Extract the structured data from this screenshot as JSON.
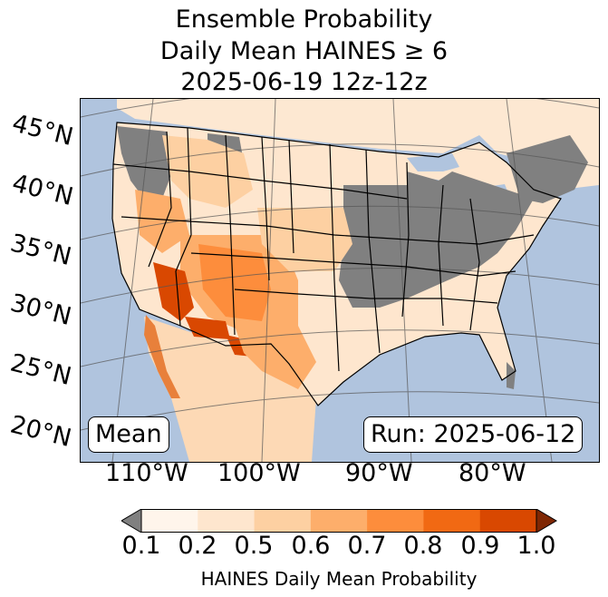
{
  "title": {
    "line1": "Ensemble Probability",
    "line2": "Daily Mean HAINES ≥ 6",
    "line3": "2025-06-19 12z-12z"
  },
  "map": {
    "lat_labels": [
      "45°N",
      "40°N",
      "35°N",
      "30°N",
      "25°N",
      "20°N"
    ],
    "lon_labels": [
      "110°W",
      "100°W",
      "90°W",
      "80°W"
    ],
    "mean_label": "Mean",
    "run_label": "Run: 2025-06-12",
    "ocean_color": "#b0c4de",
    "no_data_color": "#808080"
  },
  "colorbar": {
    "ticks": [
      "0.1",
      "0.2",
      "0.5",
      "0.6",
      "0.7",
      "0.8",
      "0.9",
      "1.0"
    ],
    "colors": [
      "#fff5eb",
      "#fee6ce",
      "#fdd0a2",
      "#fdae6b",
      "#fd8d3c",
      "#f16913",
      "#d94801",
      "#a63603"
    ],
    "under_color": "#808080",
    "label": "HAINES Daily Mean Probability"
  }
}
